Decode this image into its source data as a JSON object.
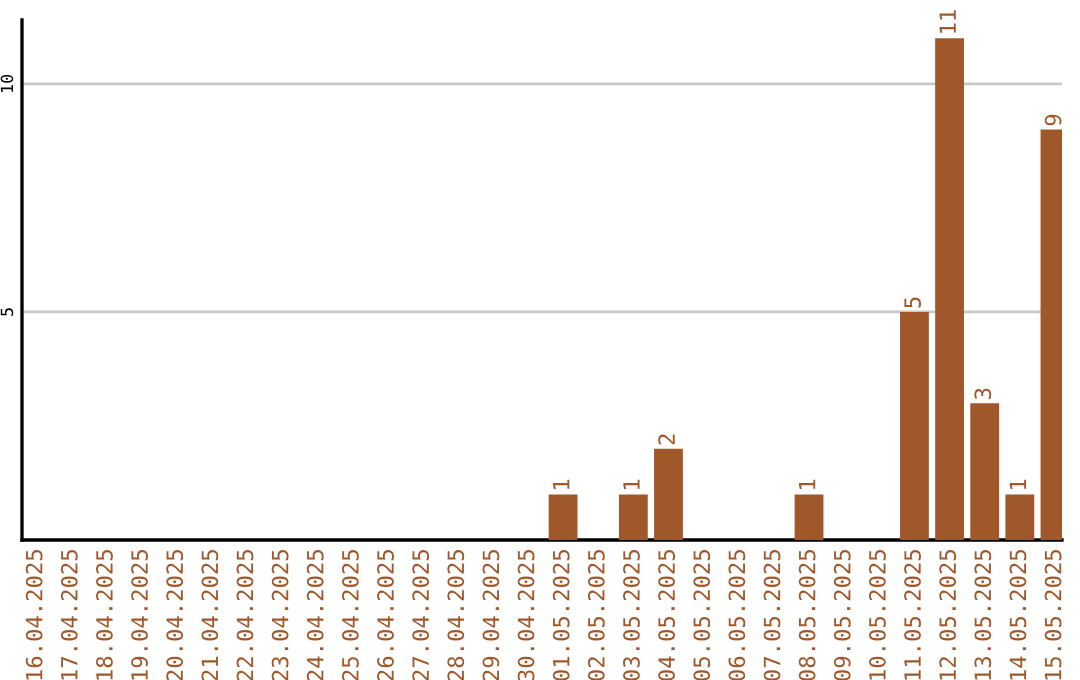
{
  "chart_data": {
    "type": "bar",
    "categories": [
      "16.04.2025",
      "17.04.2025",
      "18.04.2025",
      "19.04.2025",
      "20.04.2025",
      "21.04.2025",
      "22.04.2025",
      "23.04.2025",
      "24.04.2025",
      "25.04.2025",
      "26.04.2025",
      "27.04.2025",
      "28.04.2025",
      "29.04.2025",
      "30.04.2025",
      "01.05.2025",
      "02.05.2025",
      "03.05.2025",
      "04.05.2025",
      "05.05.2025",
      "06.05.2025",
      "07.05.2025",
      "08.05.2025",
      "09.05.2025",
      "10.05.2025",
      "11.05.2025",
      "12.05.2025",
      "13.05.2025",
      "14.05.2025",
      "15.05.2025"
    ],
    "values": [
      0,
      0,
      0,
      0,
      0,
      0,
      0,
      0,
      0,
      0,
      0,
      0,
      0,
      0,
      0,
      1,
      0,
      1,
      2,
      0,
      0,
      0,
      1,
      0,
      0,
      5,
      11,
      3,
      1,
      9
    ],
    "value_labels": [
      null,
      null,
      null,
      null,
      null,
      null,
      null,
      null,
      null,
      null,
      null,
      null,
      null,
      null,
      null,
      "1",
      null,
      "1",
      "2",
      null,
      null,
      null,
      "1",
      null,
      null,
      "5",
      "11",
      "3",
      "1",
      "9"
    ],
    "color": "#a0572a",
    "ylim": [
      0,
      11.4
    ],
    "yticks": [
      5,
      10
    ],
    "grid": "y"
  }
}
